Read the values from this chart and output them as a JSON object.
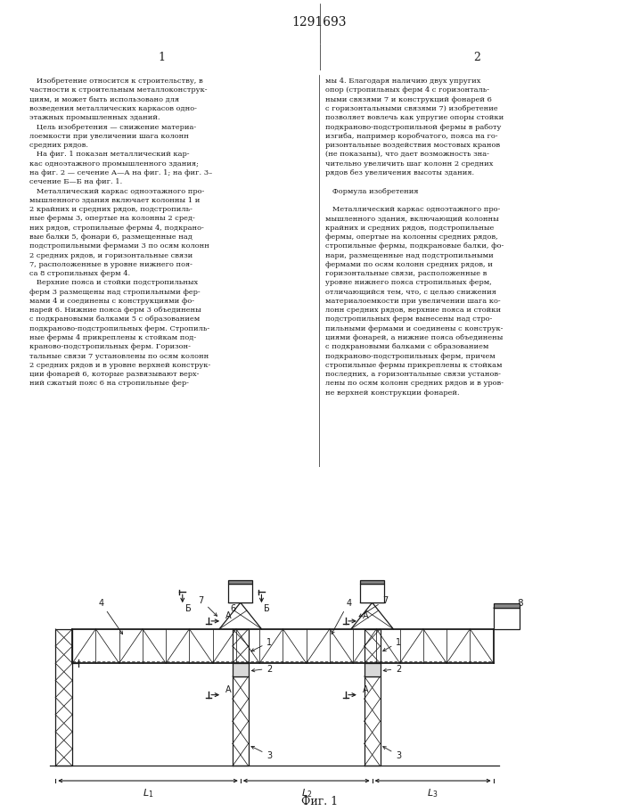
{
  "title": "1291693",
  "fig_label": "Фиг. 1",
  "background_color": "#ffffff",
  "line_color": "#1a1a1a",
  "text_color": "#1a1a1a",
  "col1_lines": [
    "   Изобретение относится к строительству, в",
    "частности к строительным металлоконструк-",
    "циям, и может быть использовано для",
    "возведения металлических каркасов одно-",
    "этажных промышленных зданий.",
    "   Цель изобретения — снижение материа-",
    "лоемкости при увеличении шага колонн",
    "средних рядов.",
    "   На фиг. 1 показан металлический кар-",
    "кас одноэтажного промышленного здания;",
    "на фиг. 2 — сечение А—А на фиг. 1; на фиг. 3–",
    "сечение Б—Б на фиг. 1.",
    "   Металлический каркас одноэтажного про-",
    "мышленного здания включает колонны 1 и",
    "2 крайних и средних рядов, подстропиль-",
    "ные фермы 3, опертые на колонны 2 сред-",
    "них рядов, стропильные фермы 4, подкрано-",
    "вые балки 5, фонари 6, размещенные над",
    "подстропильными фермами 3 по осям колонн",
    "2 средних рядов, и горизонтальные связи",
    "7, расположенные в уровне нижнего поя-",
    "са 8 стропильных ферм 4.",
    "   Верхние пояса и стойки подстропильных",
    "ферм 3 размещены над стропильными фер-",
    "мами 4 и соединены с конструкциями фо-",
    "нарей 6. Нижние пояса ферм 3 объединены",
    "с подкрановыми балками 5 с образованием",
    "подкраново-подстропильных ферм. Стропиль-",
    "ные фермы 4 прикреплены к стойкам под-",
    "краново-подстропильных ферм. Горизон-",
    "тальные связи 7 установлены по осям колонн",
    "2 средних рядов и в уровне верхней конструк-",
    "ции фонарей 6, которые развязывают верх-",
    "ний сжатый пояс 6 на стропильные фер-"
  ],
  "col2_lines": [
    "мы 4. Благодаря наличию двух упругих",
    "опор (стропильных ферм 4 с горизонталь-",
    "ными связями 7 и конструкций фонарей 6",
    "с горизонтальными связями 7) изобретение",
    "позволяет вовлечь как упругие опоры стойки",
    "подкраново-подстропильной фермы в работу",
    "изгиба, например коробчатого, пояса на го-",
    "ризонтальные воздействия мостовых кранов",
    "(не показаны), что дает возможность зна-",
    "чительно увеличить шаг колонн 2 средних",
    "рядов без увеличения высоты здания.",
    "",
    "   Формула изобретения",
    "",
    "   Металлический каркас одноэтажного про-",
    "мышленного здания, включающий колонны",
    "крайних и средних рядов, подстропильные",
    "фермы, опертые на колонны средних рядов,",
    "стропильные фермы, подкрановые балки, фо-",
    "нари, размещенные над подстропильными",
    "фермами по осям колонн средних рядов, и",
    "горизонтальные связи, расположенные в",
    "уровне нижнего пояса стропильных ферм,",
    "отличающийся тем, что, с целью снижения",
    "материалоемкости при увеличении шага ко-",
    "лонн средних рядов, верхние пояса и стойки",
    "подстропильных ферм вынесены над стро-",
    "пильными фермами и соединены с конструк-",
    "циями фонарей, а нижние пояса объединены",
    "с подкрановыми балками с образованием",
    "подкраново-подстропильных ферм, причем",
    "стропильные фермы прикреплены к стойкам",
    "последних, а горизонтальные связи установ-",
    "лены по осям колонн средних рядов и в уров-",
    "не верхней конструкции фонарей."
  ]
}
